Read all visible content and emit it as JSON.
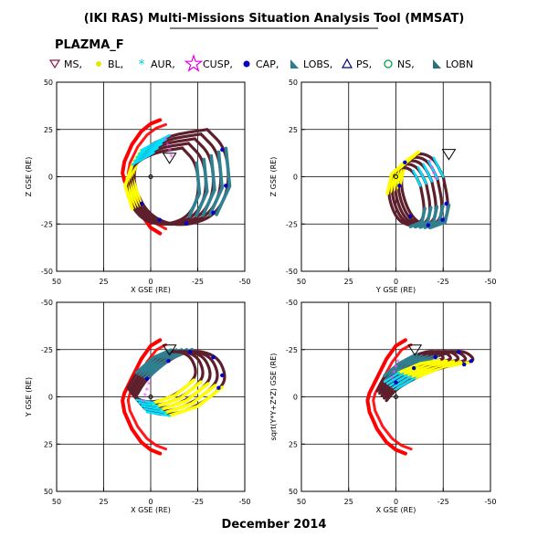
{
  "header": {
    "title": "(IKI RAS) Multi-Missions Situation Analysis Tool (MMSAT)",
    "mission": "PLAZMA_F",
    "footer": "December 2014"
  },
  "legend": [
    {
      "label": "MS,",
      "symbol": "triangle-down",
      "color": "#8b1a4a"
    },
    {
      "label": "BL,",
      "symbol": "star-small",
      "color": "#e6e600"
    },
    {
      "label": "AUR,",
      "symbol": "asterisk",
      "color": "#00c8d2"
    },
    {
      "label": "CUSP,",
      "symbol": "star-large",
      "color": "#e600e6"
    },
    {
      "label": "CAP,",
      "symbol": "dot",
      "color": "#0000c8"
    },
    {
      "label": "LOBS,",
      "symbol": "flag",
      "color": "#2d7d8c"
    },
    {
      "label": "PS,",
      "symbol": "triangle-up",
      "color": "#000080"
    },
    {
      "label": "NS,",
      "symbol": "circle",
      "color": "#00a050"
    },
    {
      "label": "LOBN",
      "symbol": "flag",
      "color": "#2d6e7d"
    }
  ],
  "colors": {
    "orbit": "#5c1f2b",
    "boundary": "#ff0000",
    "bl": "#ffff00",
    "aur": "#00e0ff",
    "cusp": "#ff40ff",
    "cap": "#0000cc",
    "lobes": "#2f8090"
  },
  "chart_data": [
    {
      "type": "scatter",
      "xlabel": "X GSE (RE)",
      "ylabel": "Z GSE (RE)",
      "xlim": [
        50,
        -50
      ],
      "ylim": [
        -50,
        50
      ],
      "xticks": [
        "50",
        "25",
        "0",
        "-25",
        "-50"
      ],
      "yticks": [
        "50",
        "25",
        "0",
        "-25",
        "-50"
      ],
      "grid": true,
      "series": [
        {
          "name": "Bow shock",
          "x": [
            -5,
            0,
            5,
            10,
            14,
            15,
            14,
            10,
            5,
            0,
            -5
          ],
          "y": [
            -30,
            -27,
            -20,
            -10,
            -2,
            2,
            8,
            17,
            24,
            28,
            30
          ]
        },
        {
          "name": "Orbit",
          "x": [
            -30,
            -40,
            -42,
            -35,
            -20,
            -5,
            5,
            10,
            5,
            -10,
            -30
          ],
          "y": [
            25,
            15,
            -5,
            -20,
            -26,
            -24,
            -15,
            0,
            14,
            22,
            25
          ]
        }
      ]
    },
    {
      "type": "scatter",
      "xlabel": "Y GSE (RE)",
      "ylabel": "Z GSE (RE)",
      "xlim": [
        50,
        -50
      ],
      "ylim": [
        -50,
        50
      ],
      "xticks": [
        "50",
        "25",
        "0",
        "-25",
        "-50"
      ],
      "yticks": [
        "50",
        "25",
        "0",
        "-25",
        "-50"
      ],
      "grid": true,
      "series": [
        {
          "name": "Orbit",
          "x": [
            -25,
            -28,
            -26,
            -18,
            -8,
            -2,
            -5,
            -12,
            -20,
            -25
          ],
          "y": [
            0,
            -15,
            -24,
            -27,
            -22,
            -5,
            8,
            13,
            10,
            0
          ]
        }
      ]
    },
    {
      "type": "scatter",
      "xlabel": "X GSE (RE)",
      "ylabel": "Y GSE (RE)",
      "xlim": [
        50,
        -50
      ],
      "ylim": [
        50,
        -50
      ],
      "xticks": [
        "50",
        "25",
        "0",
        "-25",
        "-50"
      ],
      "yticks": [
        "-50",
        "-25",
        "0",
        "25",
        "50"
      ],
      "grid": true,
      "series": [
        {
          "name": "Bow shock",
          "x": [
            -5,
            0,
            5,
            10,
            14,
            15,
            14,
            10,
            5,
            0,
            -5
          ],
          "y": [
            -30,
            -27,
            -20,
            -10,
            -2,
            2,
            8,
            17,
            24,
            28,
            30
          ]
        },
        {
          "name": "Orbit",
          "x": [
            8,
            2,
            -10,
            -22,
            -35,
            -40,
            -38,
            -25,
            -10,
            2,
            8
          ],
          "y": [
            0,
            -10,
            -20,
            -25,
            -22,
            -12,
            -5,
            5,
            10,
            8,
            0
          ]
        }
      ]
    },
    {
      "type": "scatter",
      "xlabel": "X GSE (RE)",
      "ylabel": "sqrt(Y*Y+Z*Z) GSE (RE)",
      "xlim": [
        50,
        -50
      ],
      "ylim": [
        50,
        -50
      ],
      "xticks": [
        "50",
        "25",
        "0",
        "-25",
        "-50"
      ],
      "yticks": [
        "-50",
        "-25",
        "0",
        "25",
        "50"
      ],
      "grid": true,
      "series": [
        {
          "name": "Bow shock",
          "x": [
            -5,
            0,
            5,
            10,
            14,
            15,
            14,
            10,
            5,
            0,
            -5
          ],
          "y": [
            -30,
            -27,
            -20,
            -10,
            -2,
            2,
            8,
            17,
            24,
            28,
            30
          ]
        },
        {
          "name": "Orbit",
          "x": [
            5,
            0,
            -10,
            -22,
            -35,
            -42,
            -38,
            -25,
            -10,
            0,
            5
          ],
          "y": [
            2,
            -8,
            -16,
            -22,
            -25,
            -20,
            -18,
            -16,
            -10,
            -4,
            2
          ]
        }
      ]
    }
  ]
}
